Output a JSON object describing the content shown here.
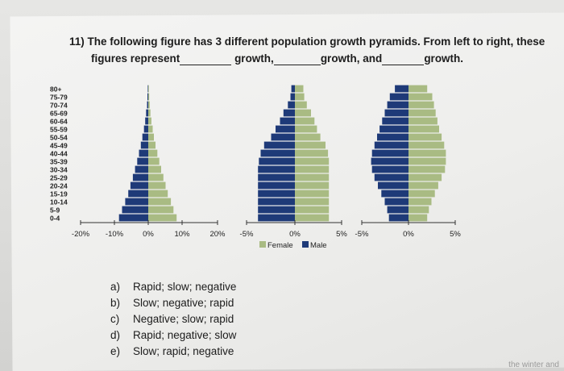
{
  "question": {
    "number": "11)",
    "line1": "The following figure has 3 different population growth pyramids. From left to right, these",
    "line2_start": "figures represent",
    "growth1": "growth,",
    "growth2": "growth, and",
    "growth3": "growth."
  },
  "legend": {
    "female": "Female",
    "male": "Male"
  },
  "answers": [
    {
      "letter": "a)",
      "text": "Rapid; slow; negative"
    },
    {
      "letter": "b)",
      "text": "Slow; negative; rapid"
    },
    {
      "letter": "c)",
      "text": "Negative; slow; rapid"
    },
    {
      "letter": "d)",
      "text": "Rapid; negative; slow"
    },
    {
      "letter": "e)",
      "text": "Slow; rapid; negative"
    }
  ],
  "corner_text": "the winter and",
  "chart_data": [
    {
      "type": "bar",
      "orientation": "horizontal-pyramid",
      "categories": [
        "0-4",
        "5-9",
        "10-14",
        "15-19",
        "20-24",
        "25-29",
        "30-34",
        "35-39",
        "40-44",
        "45-49",
        "50-54",
        "55-59",
        "60-64",
        "65-69",
        "70-74",
        "75-79",
        "80+"
      ],
      "x_ticks": [
        "-20%",
        "-10%",
        "0%",
        "10%",
        "20%"
      ],
      "xlim": [
        -22,
        22
      ],
      "series": [
        {
          "color": "#1e3a78",
          "values": [
            9.5,
            8.5,
            7.5,
            6.5,
            5.8,
            5.0,
            4.3,
            3.6,
            3.0,
            2.4,
            1.9,
            1.4,
            1.0,
            0.7,
            0.4,
            0.25,
            0.15
          ]
        },
        {
          "color": "#a9bb83",
          "values": [
            9.0,
            8.0,
            7.2,
            6.2,
            5.5,
            4.8,
            4.1,
            3.5,
            2.9,
            2.3,
            1.8,
            1.4,
            1.0,
            0.7,
            0.45,
            0.3,
            0.2
          ]
        }
      ]
    },
    {
      "type": "bar",
      "orientation": "horizontal-pyramid",
      "categories": [
        "0-4",
        "5-9",
        "10-14",
        "15-19",
        "20-24",
        "25-29",
        "30-34",
        "35-39",
        "40-44",
        "45-49",
        "50-54",
        "55-59",
        "60-64",
        "65-69",
        "70-74",
        "75-79",
        "80+"
      ],
      "x_ticks": [
        "-5%",
        "0%",
        "5%"
      ],
      "xlim": [
        -5.5,
        5.5
      ],
      "legend": "bottom",
      "series": [
        {
          "name": "Female",
          "color": "#a9bb83",
          "values": [
            4.0,
            4.0,
            4.0,
            4.0,
            4.0,
            4.0,
            4.0,
            4.0,
            3.9,
            3.6,
            3.0,
            2.6,
            2.3,
            1.9,
            1.4,
            1.1,
            1.0
          ]
        },
        {
          "name": "Male",
          "color": "#1e3a78",
          "values": [
            4.2,
            4.2,
            4.2,
            4.2,
            4.2,
            4.2,
            4.2,
            4.1,
            3.9,
            3.5,
            2.7,
            2.2,
            1.7,
            1.3,
            0.8,
            0.5,
            0.4
          ]
        }
      ]
    },
    {
      "type": "bar",
      "orientation": "horizontal-pyramid",
      "categories": [
        "0-4",
        "5-9",
        "10-14",
        "15-19",
        "20-24",
        "25-29",
        "30-34",
        "35-39",
        "40-44",
        "45-49",
        "50-54",
        "55-59",
        "60-64",
        "65-69",
        "70-74",
        "75-79",
        "80+"
      ],
      "x_ticks": [
        "-5%",
        "0%",
        "5%"
      ],
      "xlim": [
        -5.5,
        5.5
      ],
      "series": [
        {
          "color": "#1e3a78",
          "values": [
            2.3,
            2.5,
            2.8,
            3.2,
            3.6,
            4.0,
            4.3,
            4.4,
            4.3,
            4.0,
            3.7,
            3.4,
            3.1,
            2.8,
            2.5,
            2.2,
            1.6
          ]
        },
        {
          "color": "#a9bb83",
          "values": [
            2.2,
            2.4,
            2.7,
            3.1,
            3.5,
            3.9,
            4.3,
            4.4,
            4.4,
            4.2,
            3.9,
            3.6,
            3.4,
            3.2,
            3.0,
            2.8,
            2.2
          ]
        }
      ]
    }
  ]
}
